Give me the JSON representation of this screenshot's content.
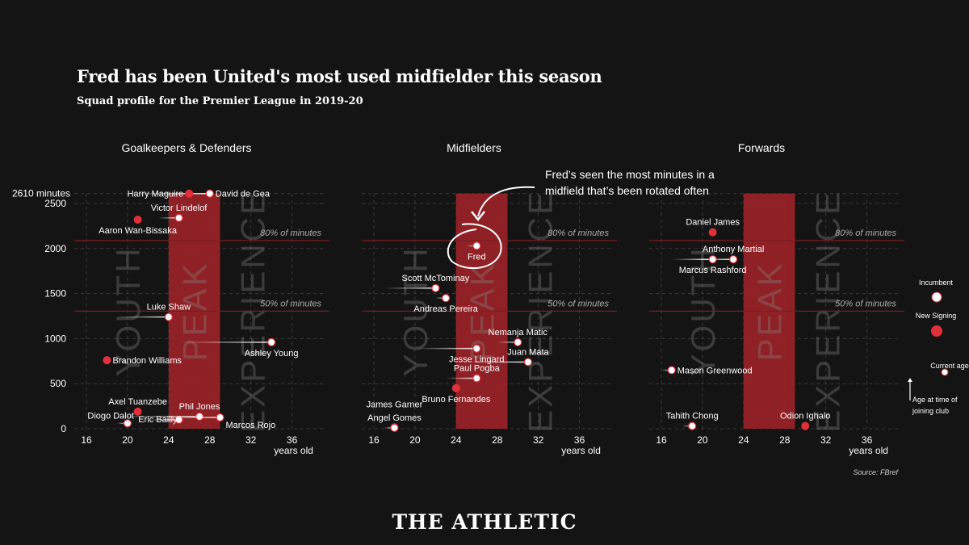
{
  "title": "Fred has been United's most used midfielder this season",
  "subtitle": "Squad profile for the Premier League in 2019-20",
  "logo": "THE ATHLETIC",
  "source": "Source: FBref",
  "annotation": "Fred's seen the most minutes in a midfield that's been rotated often",
  "annotation_lines": [
    "Fred’s seen the most minutes in a",
    "midfield that’s been rotated often"
  ],
  "colors": {
    "background": "#141414",
    "new_signing": "#e2303a",
    "incumbent": "#ffffff",
    "peak_band": "#9a2328",
    "threshold_line": "#7a1d22"
  },
  "legend": {
    "incumbent": "Incumbent",
    "new_signing": "New Signing",
    "current_age": "Current age",
    "join_age_lines": [
      "Age at time of",
      "joining club"
    ]
  },
  "chart_data": {
    "type": "scatter",
    "xlabel": "years old",
    "ylabel": "minutes",
    "x_ticks": [
      16,
      20,
      24,
      28,
      32,
      36
    ],
    "y_ticks": [
      0,
      500,
      1000,
      1500,
      2000,
      2500
    ],
    "y_max_label": "2610 minutes",
    "y_max": 2610,
    "xlim": [
      15,
      39
    ],
    "ylim": [
      0,
      2610
    ],
    "grid": true,
    "zones": {
      "youth": "YOUTH",
      "peak": "PEAK",
      "experience": "EXPERIENCE",
      "peak_range": [
        24,
        29
      ]
    },
    "thresholds": [
      {
        "label": "80% of minutes",
        "value": 2088
      },
      {
        "label": "50% of minutes",
        "value": 1305
      }
    ],
    "panels": [
      {
        "title": "Goalkeepers & Defenders",
        "players": [
          {
            "name": "David de Gea",
            "age": 28,
            "minutes": 2610,
            "join_age": 20,
            "type": "incumbent",
            "label_pos": "right"
          },
          {
            "name": "Harry Maguire",
            "age": 26,
            "minutes": 2610,
            "join_age": 26,
            "type": "new",
            "label_pos": "left"
          },
          {
            "name": "Victor Lindelof",
            "age": 25,
            "minutes": 2340,
            "join_age": 23,
            "type": "incumbent",
            "label_pos": "above"
          },
          {
            "name": "Aaron Wan-Bissaka",
            "age": 21,
            "minutes": 2320,
            "join_age": 21,
            "type": "new",
            "label_pos": "below"
          },
          {
            "name": "Luke Shaw",
            "age": 24,
            "minutes": 1240,
            "join_age": 19,
            "type": "incumbent",
            "label_pos": "above"
          },
          {
            "name": "Ashley Young",
            "age": 34,
            "minutes": 960,
            "join_age": 25,
            "type": "incumbent",
            "label_pos": "below"
          },
          {
            "name": "Brandon Williams",
            "age": 18,
            "minutes": 760,
            "join_age": 18,
            "type": "new",
            "label_pos": "right"
          },
          {
            "name": "Axel Tuanzebe",
            "age": 21,
            "minutes": 190,
            "join_age": 21,
            "type": "new",
            "label_pos": "above"
          },
          {
            "name": "Diogo Dalot",
            "age": 20,
            "minutes": 60,
            "join_age": 19,
            "type": "incumbent",
            "label_pos": "above-left"
          },
          {
            "name": "Eric Bailly",
            "age": 25,
            "minutes": 100,
            "join_age": 22,
            "type": "incumbent",
            "label_pos": "below-left"
          },
          {
            "name": "Phil Jones",
            "age": 27,
            "minutes": 135,
            "join_age": 19,
            "type": "incumbent",
            "label_pos": "above"
          },
          {
            "name": "Marcos Rojo",
            "age": 29,
            "minutes": 125,
            "join_age": 24,
            "type": "incumbent",
            "label_pos": "below-right"
          }
        ]
      },
      {
        "title": "Midfielders",
        "players": [
          {
            "name": "Fred",
            "age": 26,
            "minutes": 2030,
            "join_age": 25,
            "type": "incumbent",
            "label_pos": "below"
          },
          {
            "name": "Scott McTominay",
            "age": 22,
            "minutes": 1560,
            "join_age": 17,
            "type": "incumbent",
            "label_pos": "above"
          },
          {
            "name": "Andreas Pereira",
            "age": 23,
            "minutes": 1450,
            "join_age": 22,
            "type": "incumbent",
            "label_pos": "below"
          },
          {
            "name": "Nemanja Matic",
            "age": 30,
            "minutes": 960,
            "join_age": 28,
            "type": "incumbent",
            "label_pos": "above"
          },
          {
            "name": "Jesse Lingard",
            "age": 26,
            "minutes": 890,
            "join_age": 20,
            "type": "incumbent",
            "label_pos": "below"
          },
          {
            "name": "Juan Mata",
            "age": 31,
            "minutes": 740,
            "join_age": 25,
            "type": "incumbent",
            "label_pos": "above"
          },
          {
            "name": "Paul Pogba",
            "age": 26,
            "minutes": 560,
            "join_age": 23,
            "type": "incumbent",
            "label_pos": "above"
          },
          {
            "name": "Bruno Fernandes",
            "age": 24,
            "minutes": 450,
            "join_age": 24,
            "type": "new",
            "label_pos": "below"
          },
          {
            "name": "James Garner",
            "age": 18,
            "minutes": 15,
            "join_age": 18,
            "type": "incumbent",
            "label_pos": "above-high"
          },
          {
            "name": "Angel Gomes",
            "age": 18,
            "minutes": 10,
            "join_age": 17,
            "type": "incumbent",
            "label_pos": "above"
          }
        ]
      },
      {
        "title": "Forwards",
        "players": [
          {
            "name": "Daniel James",
            "age": 21,
            "minutes": 2180,
            "join_age": 21,
            "type": "new",
            "label_pos": "above"
          },
          {
            "name": "Anthony Martial",
            "age": 23,
            "minutes": 1880,
            "join_age": 19,
            "type": "incumbent",
            "label_pos": "above"
          },
          {
            "name": "Marcus Rashford",
            "age": 21,
            "minutes": 1880,
            "join_age": 17,
            "type": "incumbent",
            "label_pos": "below"
          },
          {
            "name": "Mason Greenwood",
            "age": 17,
            "minutes": 650,
            "join_age": 16,
            "type": "incumbent",
            "label_pos": "right"
          },
          {
            "name": "Tahith Chong",
            "age": 19,
            "minutes": 30,
            "join_age": 18,
            "type": "incumbent",
            "label_pos": "above"
          },
          {
            "name": "Odion Ighalo",
            "age": 30,
            "minutes": 30,
            "join_age": 30,
            "type": "new",
            "label_pos": "above"
          }
        ]
      }
    ]
  }
}
